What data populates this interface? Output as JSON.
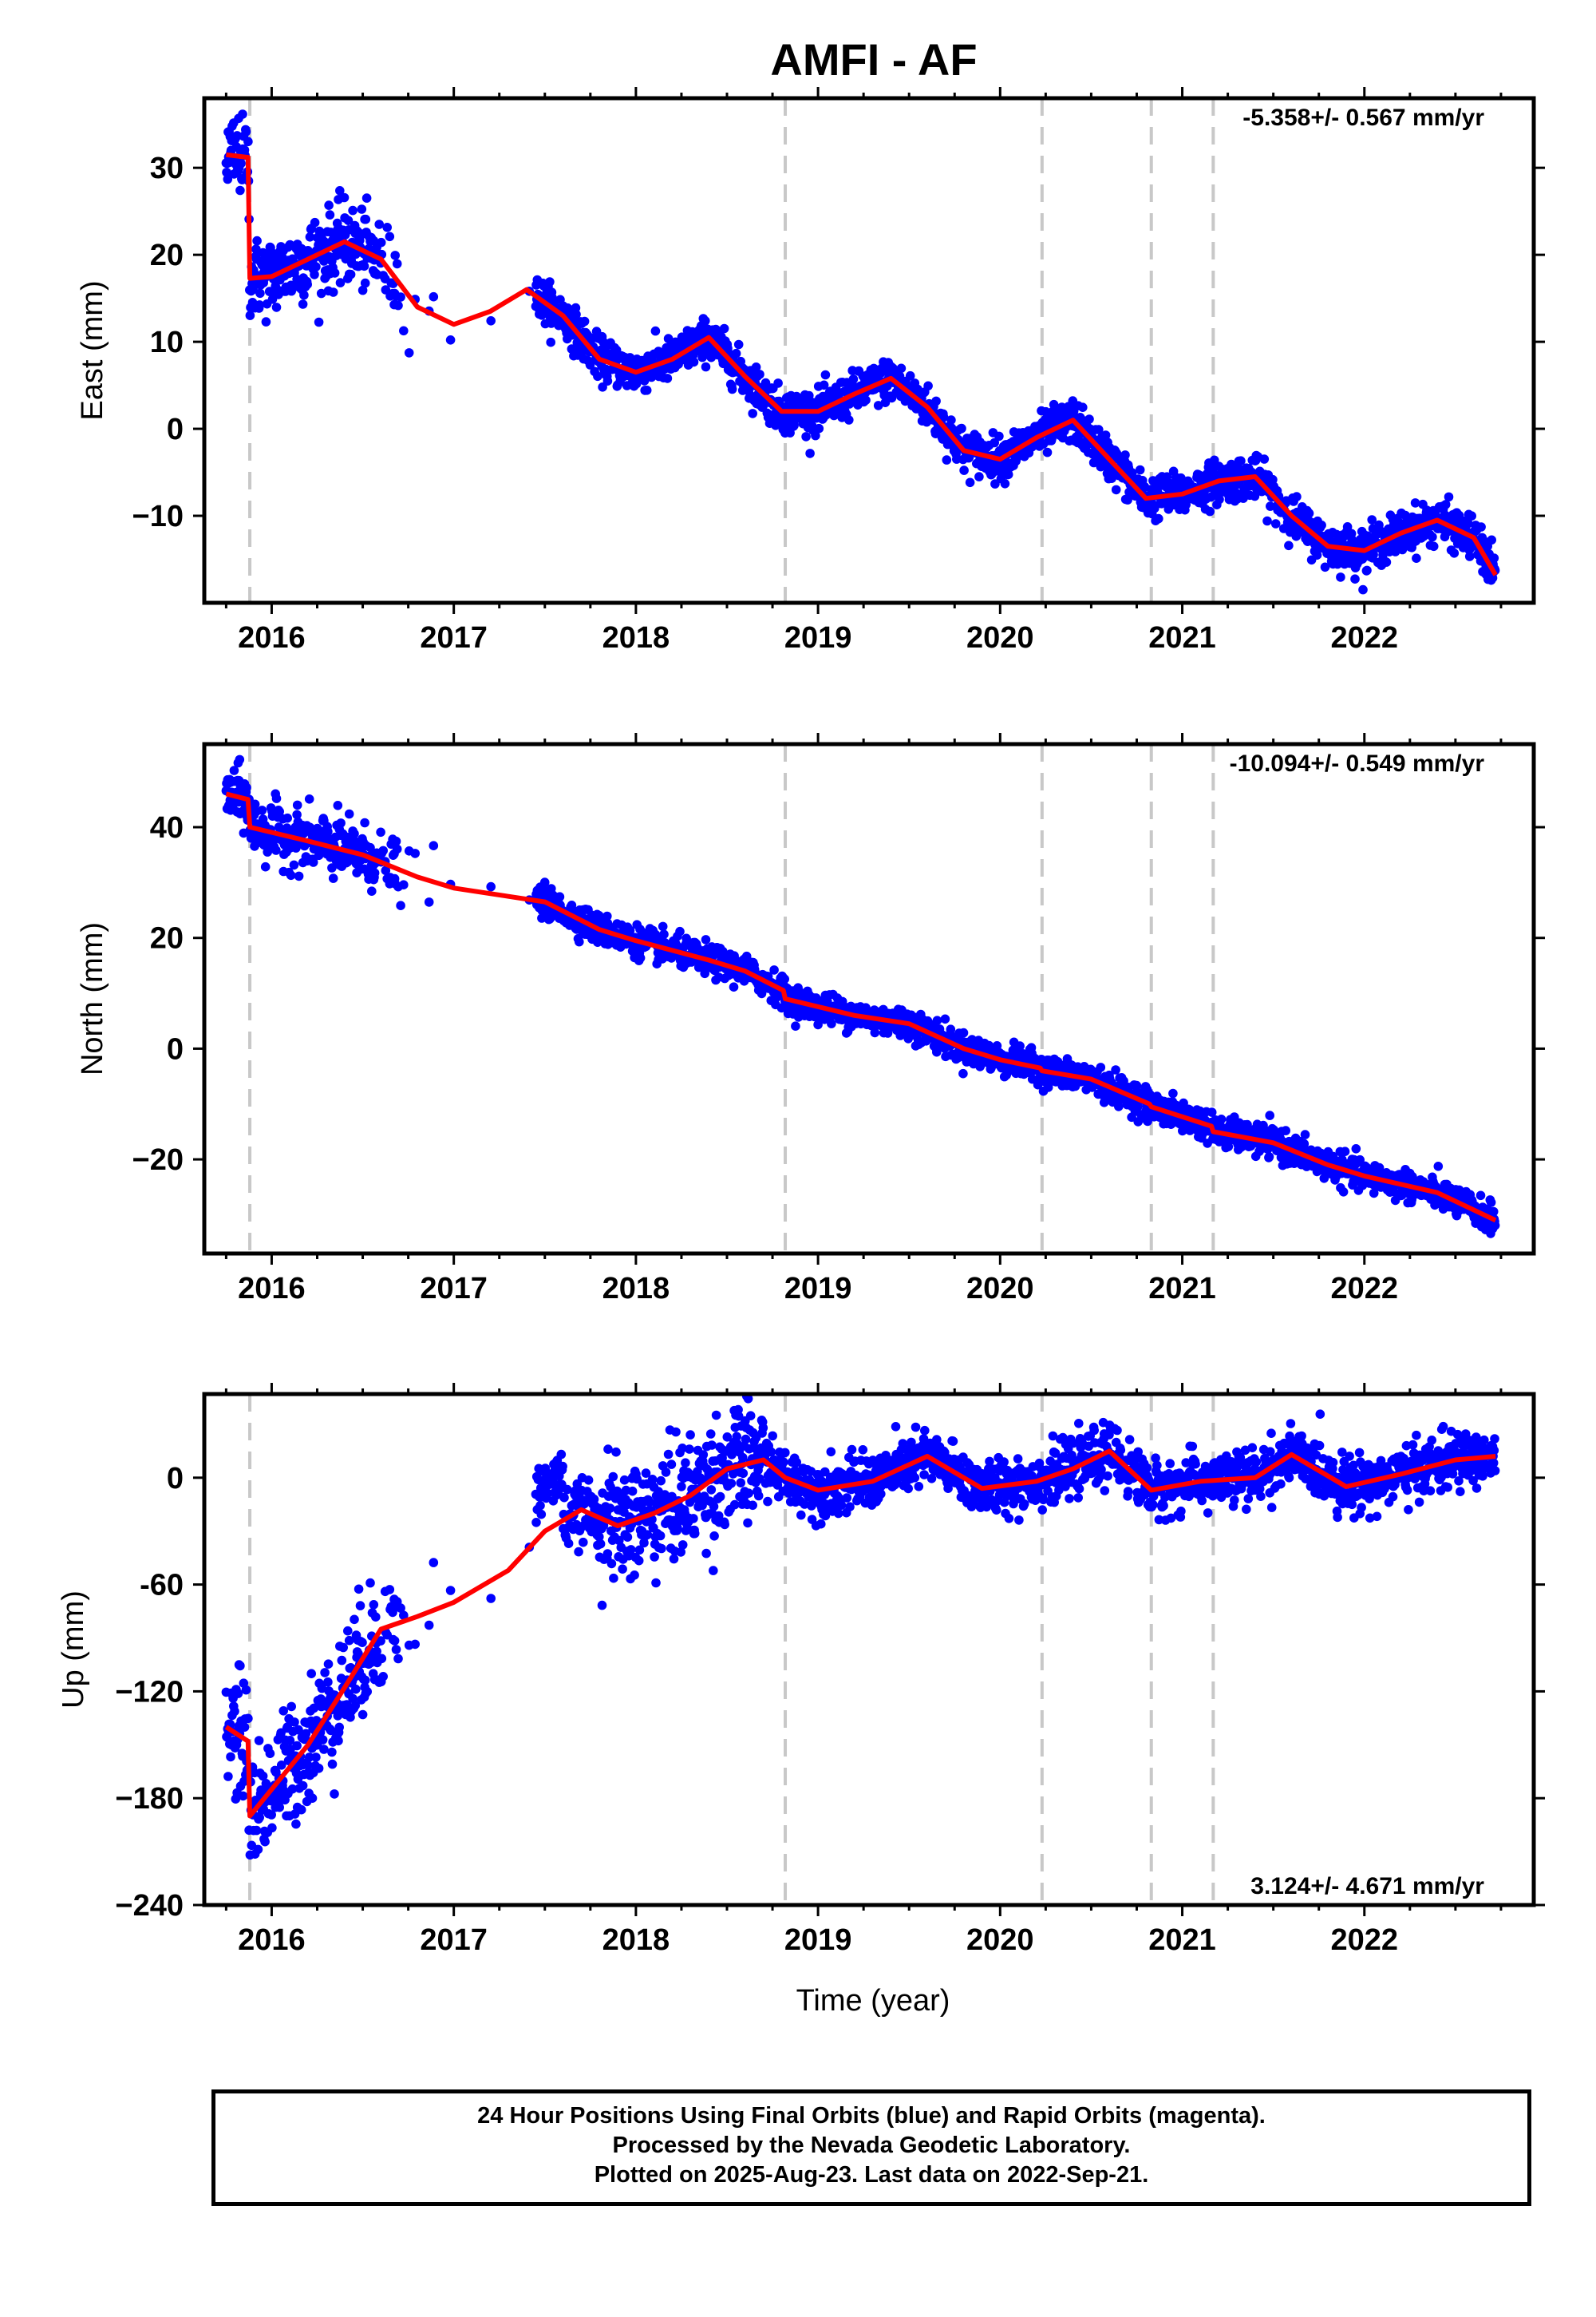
{
  "title": "AMFI - AF",
  "xlabel": "Time (year)",
  "footer": {
    "line1": "24 Hour Positions Using Final Orbits (blue) and Rapid Orbits (magenta).",
    "line2": "Processed by the Nevada Geodetic Laboratory.",
    "line3": "Plotted on 2025-Aug-23. Last data on 2022-Sep-21."
  },
  "colors": {
    "points": "#0000ff",
    "model": "#ff0000",
    "events": "#c8c8c8",
    "frame": "#000000"
  },
  "chart_data": [
    {
      "type": "scatter",
      "panel": "east",
      "ylabel": "East (mm)",
      "rate_label": "-5.358+/- 0.567 mm/yr",
      "rate_label_position": "top-right",
      "xlim": [
        2015.63,
        2022.93
      ],
      "ylim": [
        -20,
        38
      ],
      "xticks": [
        2016,
        2017,
        2018,
        2019,
        2020,
        2021,
        2022
      ],
      "yticks": [
        30,
        20,
        10,
        0,
        -10
      ],
      "ytick_labels": [
        "30",
        "20",
        "10",
        "0",
        "−10"
      ],
      "events": [
        2015.88,
        2018.82,
        2020.23,
        2020.83,
        2021.17
      ],
      "model": {
        "x": [
          2015.75,
          2015.87,
          2015.88,
          2016.0,
          2016.2,
          2016.4,
          2016.6,
          2016.8,
          2017.0,
          2017.2,
          2017.4,
          2017.6,
          2017.8,
          2018.0,
          2018.2,
          2018.4,
          2018.6,
          2018.8,
          2019.0,
          2019.2,
          2019.4,
          2019.6,
          2019.8,
          2020.0,
          2020.2,
          2020.4,
          2020.6,
          2020.8,
          2021.0,
          2021.2,
          2021.4,
          2021.6,
          2021.8,
          2022.0,
          2022.2,
          2022.4,
          2022.6,
          2022.72
        ],
        "y": [
          31.5,
          31.2,
          17.3,
          17.5,
          19.5,
          21.5,
          19.5,
          14.0,
          12.0,
          13.5,
          16.0,
          13.0,
          8.0,
          6.5,
          8.0,
          10.5,
          6.0,
          2.0,
          2.0,
          4.0,
          5.8,
          2.5,
          -2.5,
          -3.5,
          -1.0,
          1.0,
          -3.5,
          -8.0,
          -7.5,
          -6.0,
          -5.5,
          -10.0,
          -13.5,
          -14.0,
          -12.0,
          -10.5,
          -12.5,
          -16.8
        ]
      }
    },
    {
      "type": "scatter",
      "panel": "north",
      "ylabel": "North (mm)",
      "rate_label": "-10.094+/- 0.549 mm/yr",
      "rate_label_position": "top-right",
      "xlim": [
        2015.63,
        2022.93
      ],
      "ylim": [
        -37,
        55
      ],
      "xticks": [
        2016,
        2017,
        2018,
        2019,
        2020,
        2021,
        2022
      ],
      "yticks": [
        40,
        20,
        0,
        -20
      ],
      "ytick_labels": [
        "40",
        "20",
        "0",
        "−20"
      ],
      "events": [
        2015.88,
        2018.82,
        2020.23,
        2020.83,
        2021.17
      ],
      "model": {
        "x": [
          2015.75,
          2015.87,
          2015.88,
          2016.2,
          2016.5,
          2016.8,
          2017.0,
          2017.5,
          2017.8,
          2018.0,
          2018.4,
          2018.6,
          2018.81,
          2018.82,
          2019.2,
          2019.5,
          2019.8,
          2020.0,
          2020.22,
          2020.23,
          2020.5,
          2020.82,
          2020.83,
          2021.16,
          2021.17,
          2021.5,
          2021.8,
          2022.0,
          2022.4,
          2022.72
        ],
        "y": [
          46.0,
          45.0,
          40.0,
          37.5,
          35.0,
          31.0,
          29.0,
          26.5,
          21.5,
          19.5,
          16.0,
          14.0,
          10.5,
          9.0,
          6.0,
          4.5,
          0.0,
          -2.0,
          -3.5,
          -4.0,
          -5.5,
          -10.0,
          -10.5,
          -14.0,
          -15.0,
          -17.0,
          -21.0,
          -23.0,
          -26.0,
          -31.0
        ]
      }
    },
    {
      "type": "scatter",
      "panel": "up",
      "ylabel": "Up (mm)",
      "rate_label": "3.124+/- 4.671 mm/yr",
      "rate_label_position": "bottom-right",
      "xlim": [
        2015.63,
        2022.93
      ],
      "ylim": [
        -240,
        47
      ],
      "xticks": [
        2016,
        2017,
        2018,
        2019,
        2020,
        2021,
        2022
      ],
      "yticks": [
        0,
        -60,
        -120,
        -180,
        -240
      ],
      "ytick_labels": [
        "0",
        "-60",
        "−120",
        "−180",
        "−240"
      ],
      "events": [
        2015.88,
        2018.82,
        2020.23,
        2020.83,
        2021.17
      ],
      "model": {
        "x": [
          2015.75,
          2015.87,
          2015.88,
          2016.0,
          2016.2,
          2016.4,
          2016.6,
          2016.8,
          2017.0,
          2017.3,
          2017.5,
          2017.7,
          2017.9,
          2018.1,
          2018.3,
          2018.5,
          2018.7,
          2018.82,
          2019.0,
          2019.3,
          2019.6,
          2019.9,
          2020.2,
          2020.4,
          2020.6,
          2020.83,
          2021.1,
          2021.4,
          2021.6,
          2021.9,
          2022.2,
          2022.5,
          2022.72
        ],
        "y": [
          -140,
          -148,
          -190,
          -175,
          -150,
          -118,
          -85,
          -78,
          -70,
          -52,
          -30,
          -18,
          -27,
          -20,
          -10,
          5,
          10,
          0,
          -7,
          -2,
          12,
          -6,
          -2,
          5,
          15,
          -7,
          -2,
          0,
          13,
          -5,
          2,
          10,
          12
        ]
      }
    }
  ]
}
